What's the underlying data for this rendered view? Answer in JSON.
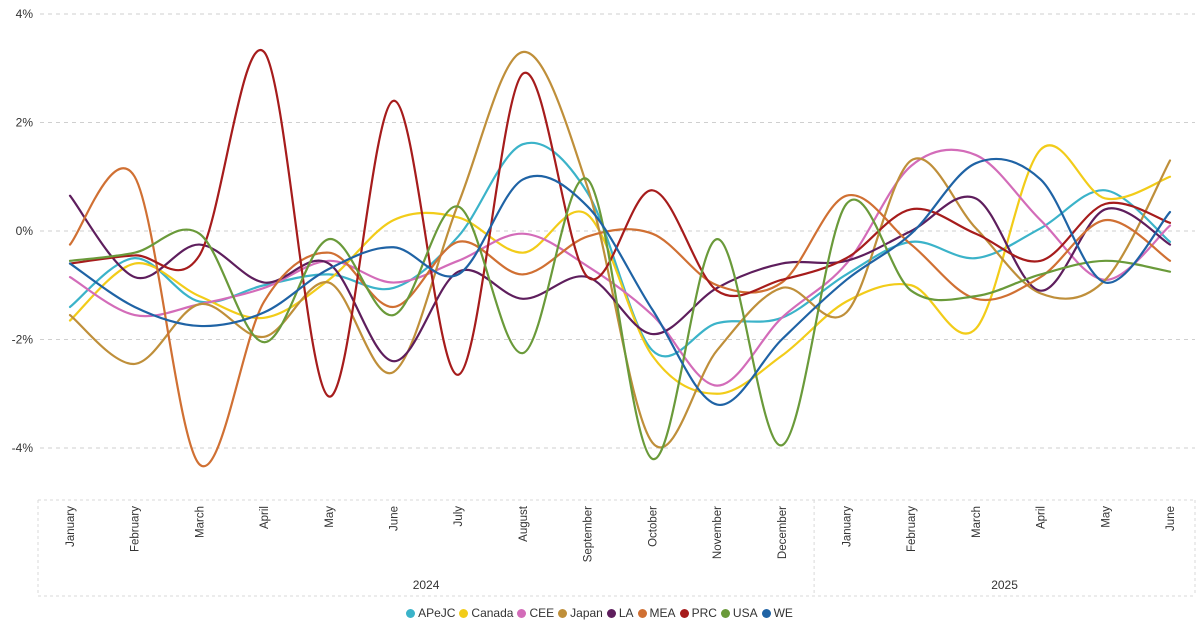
{
  "chart_data": {
    "type": "line",
    "y_ticks": [
      "4%",
      "2%",
      "0%",
      "-2%",
      "-4%"
    ],
    "y_tick_values": [
      4,
      2,
      0,
      -2,
      -4
    ],
    "ylim": [
      -5,
      4
    ],
    "grid": true,
    "legend_position": "bottom",
    "x": [
      "January",
      "February",
      "March",
      "April",
      "May",
      "June",
      "July",
      "August",
      "September",
      "October",
      "November",
      "December",
      "January",
      "February",
      "March",
      "April",
      "May",
      "June"
    ],
    "years": [
      {
        "label": "2024",
        "start": 0,
        "end": 11
      },
      {
        "label": "2025",
        "start": 12,
        "end": 17
      }
    ],
    "series": [
      {
        "name": "APeJC",
        "color": "#3BB3C9",
        "values": [
          -1.4,
          -0.5,
          -1.3,
          -1.0,
          -0.8,
          -1.05,
          -0.1,
          1.6,
          0.7,
          -2.2,
          -1.7,
          -1.6,
          -0.8,
          -0.2,
          -0.5,
          0.05,
          0.75,
          -0.2
        ]
      },
      {
        "name": "Canada",
        "color": "#F2CC19",
        "values": [
          -1.65,
          -0.6,
          -1.2,
          -1.6,
          -0.9,
          0.2,
          0.25,
          -0.4,
          0.3,
          -2.3,
          -3.0,
          -2.3,
          -1.3,
          -1.0,
          -1.8,
          1.5,
          0.6,
          1.0
        ]
      },
      {
        "name": "CEE",
        "color": "#D36CB9",
        "values": [
          -0.85,
          -1.55,
          -1.35,
          -1.05,
          -0.55,
          -0.95,
          -0.55,
          -0.05,
          -0.65,
          -1.55,
          -2.85,
          -1.6,
          -0.6,
          1.2,
          1.4,
          0.2,
          -0.9,
          0.1
        ]
      },
      {
        "name": "Japan",
        "color": "#BF8F3A",
        "values": [
          -1.55,
          -2.45,
          -1.35,
          -1.95,
          -0.95,
          -2.6,
          0.5,
          3.3,
          0.8,
          -3.9,
          -2.2,
          -1.05,
          -1.5,
          1.3,
          0.05,
          -1.15,
          -0.9,
          1.3
        ]
      },
      {
        "name": "LA",
        "color": "#5E1E5D",
        "values": [
          0.65,
          -0.85,
          -0.25,
          -0.95,
          -0.6,
          -2.4,
          -0.75,
          -1.25,
          -0.85,
          -1.9,
          -1.05,
          -0.6,
          -0.55,
          0.0,
          0.6,
          -1.1,
          0.4,
          -0.25
        ]
      },
      {
        "name": "MEA",
        "color": "#D07033",
        "values": [
          -0.25,
          1.0,
          -4.3,
          -1.3,
          -0.4,
          -1.4,
          -0.2,
          -0.8,
          -0.1,
          -0.05,
          -1.0,
          -0.95,
          0.65,
          -0.25,
          -1.25,
          -0.85,
          0.2,
          -0.55
        ]
      },
      {
        "name": "PRC",
        "color": "#A61C1C",
        "values": [
          -0.6,
          -0.45,
          -0.45,
          3.3,
          -3.05,
          2.4,
          -2.65,
          2.9,
          -0.85,
          0.75,
          -1.1,
          -0.9,
          -0.5,
          0.4,
          -0.05,
          -0.55,
          0.5,
          0.15
        ]
      },
      {
        "name": "USA",
        "color": "#6A9A3A",
        "values": [
          -0.55,
          -0.4,
          -0.05,
          -2.05,
          -0.15,
          -1.55,
          0.45,
          -2.25,
          0.95,
          -4.2,
          -0.15,
          -3.95,
          0.5,
          -1.1,
          -1.2,
          -0.8,
          -0.55,
          -0.75
        ]
      },
      {
        "name": "WE",
        "color": "#1F63A5",
        "values": [
          -0.6,
          -1.4,
          -1.75,
          -1.5,
          -0.7,
          -0.3,
          -0.8,
          0.95,
          0.45,
          -1.45,
          -3.2,
          -2.0,
          -0.9,
          -0.05,
          1.25,
          0.95,
          -0.95,
          0.35
        ]
      }
    ]
  }
}
